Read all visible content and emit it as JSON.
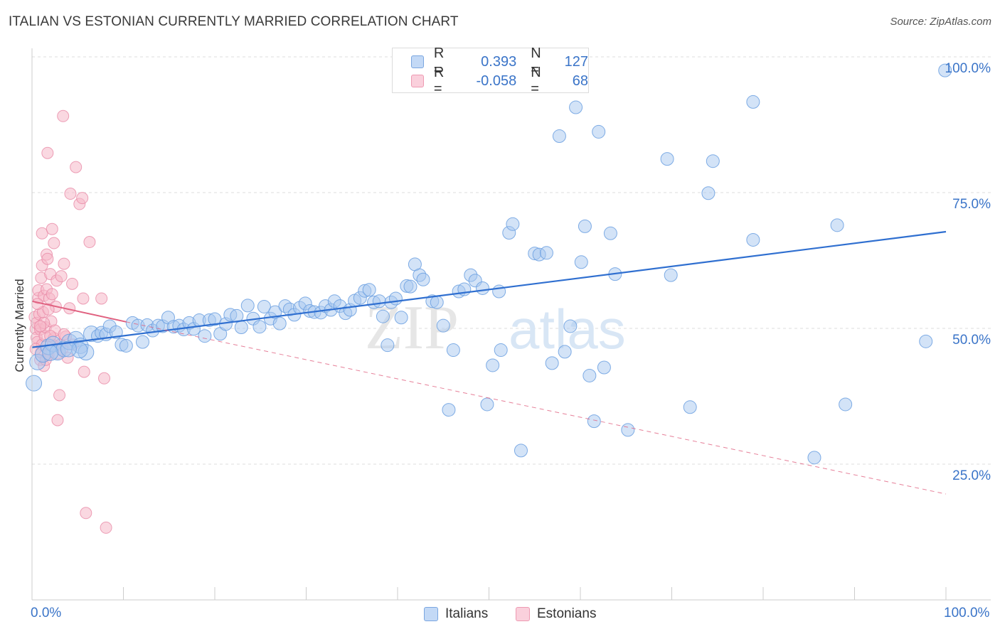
{
  "title": "ITALIAN VS ESTONIAN CURRENTLY MARRIED CORRELATION CHART",
  "source": "Source: ZipAtlas.com",
  "legend_top": {
    "rows": [
      {
        "r_label": "R =",
        "r_value": "0.393",
        "n_label": "N =",
        "n_value": "127",
        "color": "#a8c8f0"
      },
      {
        "r_label": "R =",
        "r_value": "-0.058",
        "n_label": "N =",
        "n_value": "68",
        "color": "#f6b8c8"
      }
    ]
  },
  "legend_bottom": {
    "italians": "Italians",
    "estonians": "Estonians"
  },
  "watermark": {
    "zip": "ZIP",
    "atlas": "atlas"
  },
  "chart_data": {
    "type": "scatter",
    "title": "ITALIAN VS ESTONIAN CURRENTLY MARRIED CORRELATION CHART",
    "xlabel": "",
    "ylabel": "Currently Married",
    "xlim": [
      0,
      100
    ],
    "ylim": [
      0,
      100
    ],
    "x_tick_labels": [
      "0.0%",
      "100.0%"
    ],
    "y_tick_labels": [
      "100.0%",
      "75.0%",
      "50.0%",
      "25.0%"
    ],
    "y_tick_values": [
      100,
      75,
      50,
      25
    ],
    "colors": {
      "italians": "#6a9fe0",
      "italians_fill": "#a8c8f0",
      "italians_line": "#2f6fd0",
      "estonians": "#e88aa6",
      "estonians_fill": "#f6b8c8",
      "estonians_line": "#e0607f"
    },
    "series": [
      {
        "name": "Italians",
        "trend": {
          "x0": 0,
          "y0": 46.5,
          "x1": 100,
          "y1": 67.8,
          "style": "solid"
        },
        "points": [
          [
            0.2,
            39.9
          ],
          [
            0.6,
            43.8
          ],
          [
            1.2,
            45.2
          ],
          [
            1.8,
            46.6
          ],
          [
            2.3,
            47.1
          ],
          [
            2.8,
            45.6
          ],
          [
            3.5,
            46.2
          ],
          [
            4.1,
            47.5
          ],
          [
            4.8,
            48.0
          ],
          [
            5.3,
            46.8
          ],
          [
            5.9,
            45.6
          ],
          [
            6.5,
            49.0
          ],
          [
            7.2,
            48.6
          ],
          [
            7.6,
            49.2
          ],
          [
            8.1,
            48.9
          ],
          [
            8.5,
            50.4
          ],
          [
            9.2,
            49.3
          ],
          [
            9.8,
            47.0
          ],
          [
            10.3,
            46.8
          ],
          [
            11.0,
            51.0
          ],
          [
            11.6,
            50.5
          ],
          [
            12.1,
            47.5
          ],
          [
            12.6,
            50.6
          ],
          [
            13.2,
            49.6
          ],
          [
            13.8,
            50.5
          ],
          [
            14.3,
            50.4
          ],
          [
            14.9,
            52.0
          ],
          [
            15.5,
            50.3
          ],
          [
            16.1,
            50.5
          ],
          [
            16.6,
            49.8
          ],
          [
            17.2,
            51.0
          ],
          [
            17.7,
            49.9
          ],
          [
            18.3,
            51.5
          ],
          [
            18.9,
            48.6
          ],
          [
            19.4,
            51.5
          ],
          [
            20.0,
            51.7
          ],
          [
            20.6,
            49.0
          ],
          [
            21.2,
            50.8
          ],
          [
            21.7,
            52.5
          ],
          [
            22.4,
            52.3
          ],
          [
            22.9,
            50.2
          ],
          [
            23.6,
            54.2
          ],
          [
            24.2,
            51.8
          ],
          [
            24.9,
            50.3
          ],
          [
            25.4,
            54.0
          ],
          [
            26.1,
            51.8
          ],
          [
            26.6,
            53.0
          ],
          [
            27.1,
            50.9
          ],
          [
            27.7,
            54.1
          ],
          [
            28.2,
            53.5
          ],
          [
            28.7,
            52.5
          ],
          [
            29.3,
            53.8
          ],
          [
            29.9,
            54.6
          ],
          [
            30.4,
            53.2
          ],
          [
            30.9,
            53.0
          ],
          [
            31.6,
            52.9
          ],
          [
            32.1,
            54.1
          ],
          [
            32.7,
            53.4
          ],
          [
            33.1,
            55.0
          ],
          [
            33.7,
            54.1
          ],
          [
            34.3,
            52.8
          ],
          [
            34.8,
            53.4
          ],
          [
            35.3,
            55.1
          ],
          [
            35.9,
            55.6
          ],
          [
            36.4,
            56.9
          ],
          [
            36.9,
            57.1
          ],
          [
            37.4,
            54.8
          ],
          [
            38.0,
            55.0
          ],
          [
            38.4,
            52.2
          ],
          [
            38.9,
            46.9
          ],
          [
            39.3,
            54.8
          ],
          [
            39.8,
            55.5
          ],
          [
            40.4,
            52.0
          ],
          [
            41.0,
            57.8
          ],
          [
            41.4,
            57.7
          ],
          [
            41.9,
            61.8
          ],
          [
            42.4,
            59.8
          ],
          [
            42.8,
            59.0
          ],
          [
            43.8,
            55.0
          ],
          [
            44.3,
            54.8
          ],
          [
            45.0,
            50.5
          ],
          [
            45.6,
            35.0
          ],
          [
            46.1,
            46.0
          ],
          [
            46.7,
            56.8
          ],
          [
            47.3,
            57.2
          ],
          [
            48.0,
            59.8
          ],
          [
            48.5,
            58.8
          ],
          [
            49.3,
            57.4
          ],
          [
            49.8,
            36.0
          ],
          [
            50.4,
            43.2
          ],
          [
            51.1,
            56.8
          ],
          [
            51.3,
            46.0
          ],
          [
            52.2,
            67.6
          ],
          [
            52.6,
            69.2
          ],
          [
            53.5,
            27.5
          ],
          [
            55.0,
            63.8
          ],
          [
            55.5,
            63.6
          ],
          [
            56.3,
            63.9
          ],
          [
            56.9,
            43.6
          ],
          [
            57.7,
            85.4
          ],
          [
            58.3,
            45.7
          ],
          [
            58.9,
            50.4
          ],
          [
            59.5,
            90.7
          ],
          [
            60.1,
            62.2
          ],
          [
            60.5,
            68.8
          ],
          [
            61.0,
            41.3
          ],
          [
            61.5,
            32.9
          ],
          [
            62.0,
            86.2
          ],
          [
            62.6,
            42.8
          ],
          [
            63.3,
            67.5
          ],
          [
            63.8,
            60.0
          ],
          [
            65.2,
            31.3
          ],
          [
            69.5,
            81.2
          ],
          [
            69.9,
            59.8
          ],
          [
            72.0,
            35.5
          ],
          [
            74.0,
            74.9
          ],
          [
            74.5,
            80.8
          ],
          [
            78.9,
            66.3
          ],
          [
            78.9,
            91.7
          ],
          [
            85.6,
            26.2
          ],
          [
            88.1,
            69.0
          ],
          [
            89.0,
            36.0
          ],
          [
            97.8,
            47.6
          ],
          [
            99.9,
            97.5
          ],
          [
            5.2,
            46.0
          ],
          [
            4.0,
            46.2
          ],
          [
            2.0,
            45.5
          ]
        ]
      },
      {
        "name": "Estonians",
        "trend": {
          "x0": 0,
          "y0": 55.0,
          "x1": 10.3,
          "y1": 51.2,
          "dash_x1": 100,
          "dash_y1": 19.5,
          "style": "solid-then-dashed"
        },
        "points": [
          [
            0.3,
            52.1
          ],
          [
            0.4,
            49.9
          ],
          [
            0.5,
            48.3
          ],
          [
            0.5,
            51.0
          ],
          [
            0.6,
            47.5
          ],
          [
            0.7,
            55.6
          ],
          [
            0.7,
            57.0
          ],
          [
            0.8,
            52.6
          ],
          [
            0.9,
            49.8
          ],
          [
            0.9,
            44.2
          ],
          [
            1.0,
            45.6
          ],
          [
            1.0,
            59.3
          ],
          [
            1.1,
            47.0
          ],
          [
            1.1,
            61.6
          ],
          [
            1.1,
            67.5
          ],
          [
            1.2,
            53.0
          ],
          [
            1.3,
            56.0
          ],
          [
            1.3,
            43.1
          ],
          [
            1.4,
            48.6
          ],
          [
            1.5,
            50.2
          ],
          [
            1.6,
            57.2
          ],
          [
            1.6,
            63.6
          ],
          [
            1.7,
            82.3
          ],
          [
            1.7,
            62.8
          ],
          [
            1.8,
            45.1
          ],
          [
            1.9,
            55.5
          ],
          [
            2.0,
            60.0
          ],
          [
            2.1,
            51.3
          ],
          [
            2.2,
            56.3
          ],
          [
            2.2,
            68.3
          ],
          [
            2.3,
            46.9
          ],
          [
            2.4,
            65.7
          ],
          [
            2.4,
            48.2
          ],
          [
            2.6,
            54.0
          ],
          [
            2.7,
            58.8
          ],
          [
            2.8,
            45.4
          ],
          [
            2.8,
            33.1
          ],
          [
            3.0,
            37.7
          ],
          [
            3.1,
            47.0
          ],
          [
            3.2,
            59.6
          ],
          [
            3.3,
            46.1
          ],
          [
            3.4,
            89.1
          ],
          [
            3.5,
            61.9
          ],
          [
            3.7,
            48.5
          ],
          [
            3.9,
            44.6
          ],
          [
            4.1,
            53.7
          ],
          [
            4.2,
            74.8
          ],
          [
            4.4,
            58.2
          ],
          [
            4.5,
            47.0
          ],
          [
            4.8,
            79.7
          ],
          [
            5.2,
            72.9
          ],
          [
            5.5,
            74.0
          ],
          [
            5.6,
            55.5
          ],
          [
            5.7,
            42.0
          ],
          [
            5.9,
            16.0
          ],
          [
            6.3,
            65.9
          ],
          [
            7.6,
            55.5
          ],
          [
            7.9,
            40.8
          ],
          [
            8.1,
            13.3
          ],
          [
            0.6,
            54.5
          ],
          [
            1.3,
            51.0
          ],
          [
            1.8,
            53.5
          ],
          [
            2.5,
            49.6
          ],
          [
            0.4,
            46.2
          ],
          [
            0.9,
            50.4
          ],
          [
            1.5,
            44.2
          ],
          [
            2.0,
            48.6
          ],
          [
            3.5,
            48.9
          ]
        ]
      }
    ]
  }
}
